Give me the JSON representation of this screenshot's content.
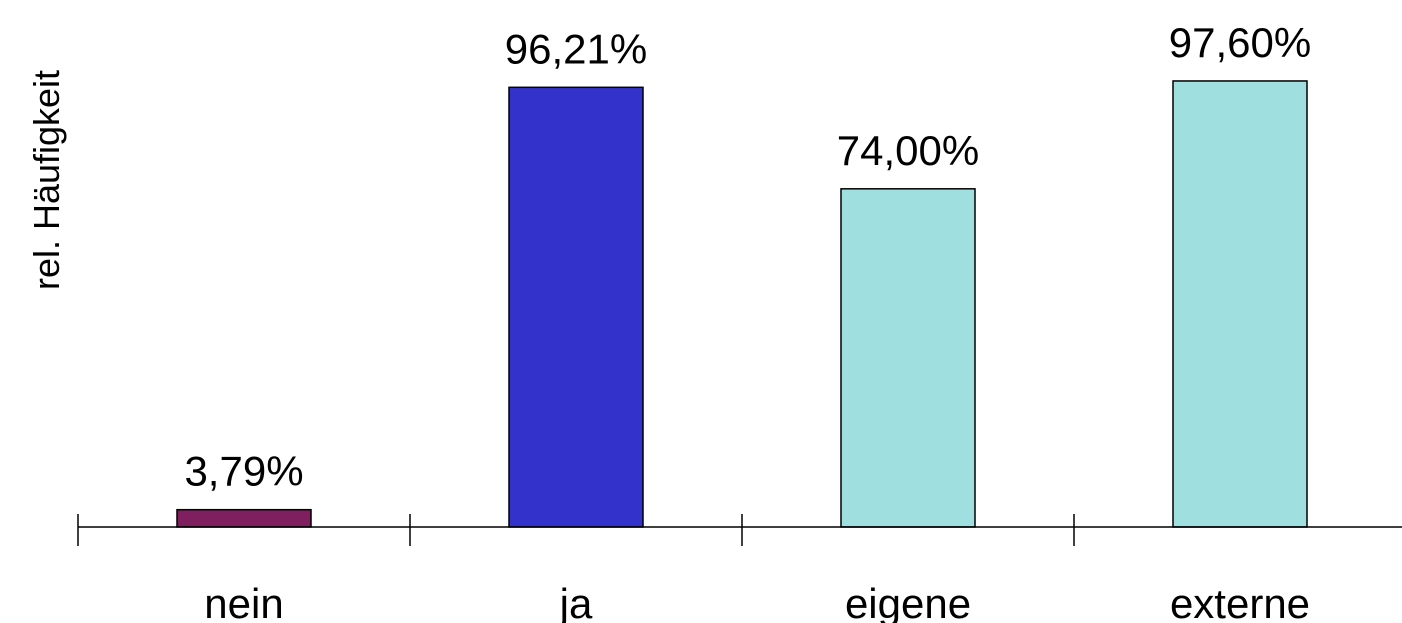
{
  "chart_data": {
    "type": "bar",
    "title": "",
    "xlabel": "",
    "ylabel": "rel. Häufigkeit",
    "ylim": [
      0,
      100
    ],
    "grid": false,
    "legend": "none",
    "categories": [
      "nein",
      "ja",
      "eigene",
      "externe"
    ],
    "values": [
      3.79,
      96.21,
      74.0,
      97.6
    ],
    "data_labels": [
      "3,79%",
      "96,21%",
      "74,00%",
      "97,60%"
    ],
    "colors": [
      "#7f1f5f",
      "#3333cc",
      "#9fdfdf",
      "#9fdfdf"
    ]
  }
}
